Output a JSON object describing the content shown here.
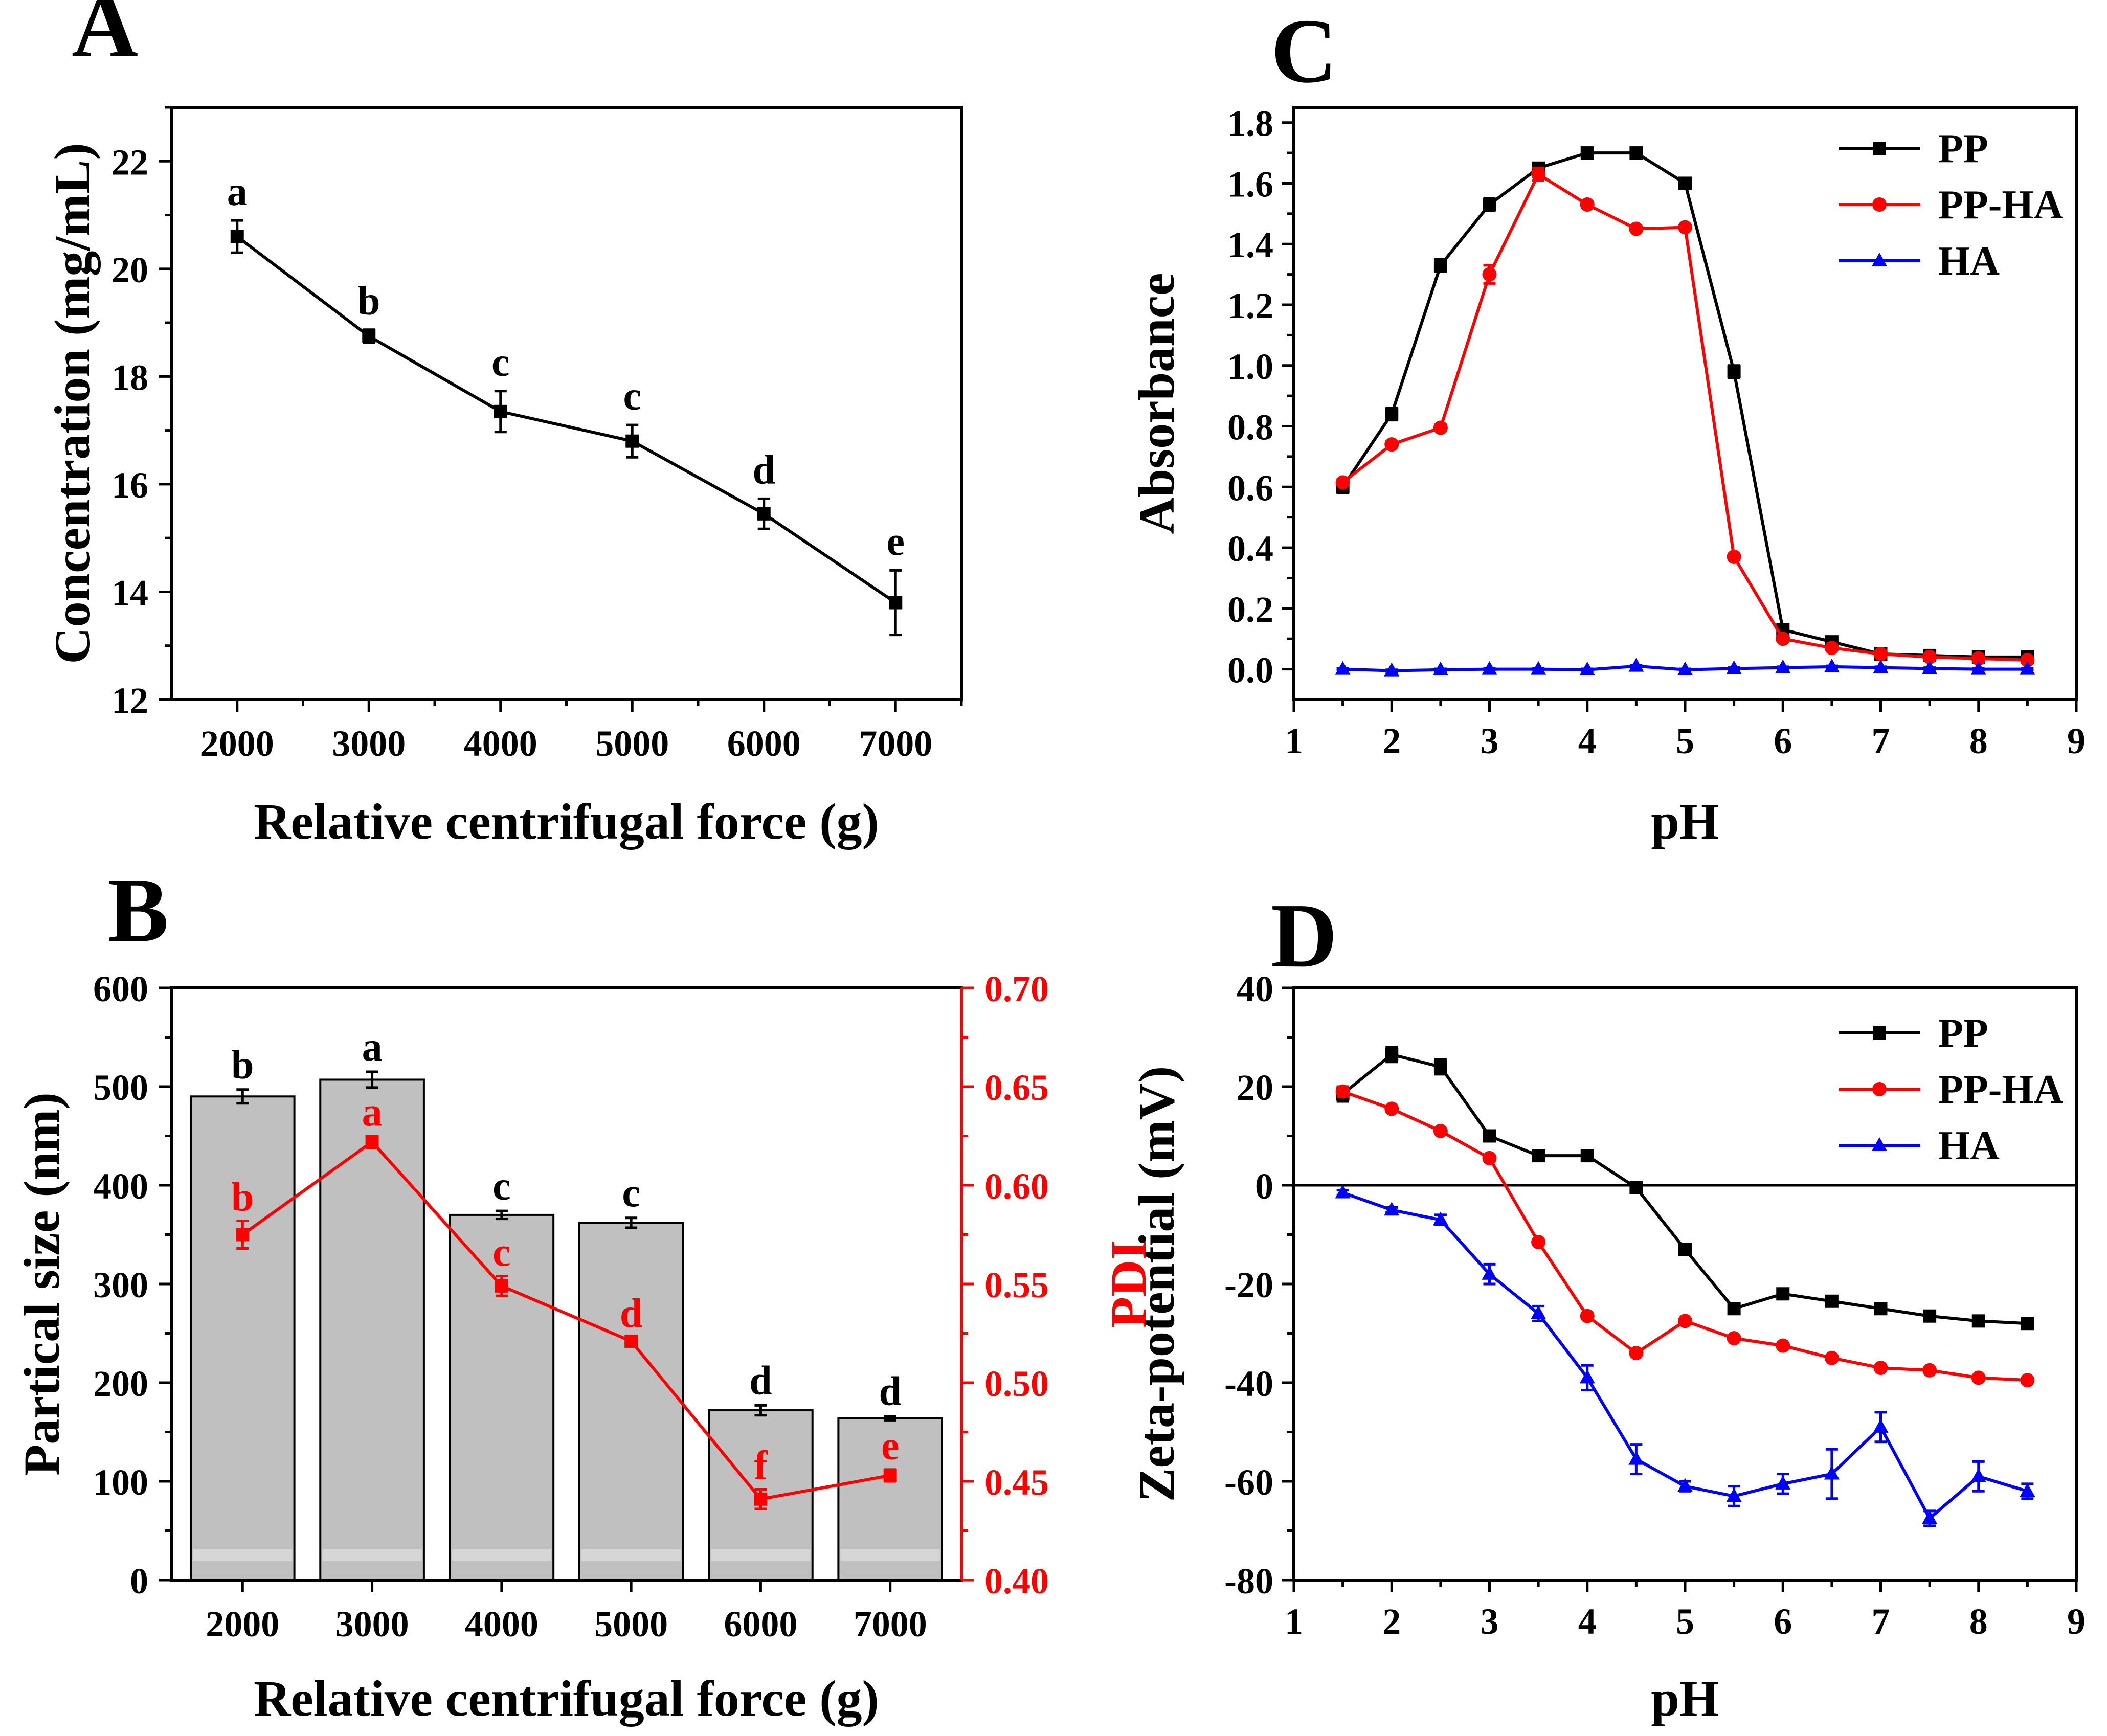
{
  "colors": {
    "black": "#000000",
    "red": "#ff0000",
    "blue": "#0000ff",
    "bar_fill": "#c0c0c0"
  },
  "chart_data": [
    {
      "panel": "A",
      "type": "line",
      "xlabel": "Relative centrifugal force (g)",
      "ylabel": "Concentration (mg/mL)",
      "x": [
        2000,
        3000,
        4000,
        5000,
        6000,
        7000
      ],
      "x_ticks": [
        "2000",
        "3000",
        "4000",
        "5000",
        "6000",
        "7000"
      ],
      "xlim": [
        1500,
        7500
      ],
      "ylim": [
        12,
        23
      ],
      "y_ticks": [
        "12",
        "14",
        "16",
        "18",
        "20",
        "22"
      ],
      "series": [
        {
          "name": "Concentration",
          "color": "black",
          "marker": "square",
          "values": [
            20.6,
            18.75,
            17.35,
            16.8,
            15.45,
            13.8
          ],
          "errors": [
            0.3,
            0.12,
            0.38,
            0.3,
            0.28,
            0.6
          ],
          "letters": [
            "a",
            "b",
            "c",
            "c",
            "d",
            "e"
          ]
        }
      ]
    },
    {
      "panel": "B",
      "type": "bar",
      "xlabel": "Relative centrifugal force (g)",
      "ylabel": "Partical size (nm)",
      "ylabel_right": "PDI",
      "categories": [
        "2000",
        "3000",
        "4000",
        "5000",
        "6000",
        "7000"
      ],
      "ylim": [
        0,
        600
      ],
      "y_ticks": [
        "0",
        "100",
        "200",
        "300",
        "400",
        "500",
        "600"
      ],
      "ylim_right": [
        0.4,
        0.7
      ],
      "y_ticks_right": [
        "0.40",
        "0.45",
        "0.50",
        "0.55",
        "0.60",
        "0.65",
        "0.70"
      ],
      "series": [
        {
          "name": "Partical size",
          "kind": "bar",
          "color": "black",
          "values": [
            490,
            507,
            370,
            362,
            172,
            164
          ],
          "errors": [
            7,
            8,
            4,
            5,
            5,
            2
          ],
          "letters": [
            "b",
            "a",
            "c",
            "c",
            "d",
            "d"
          ]
        },
        {
          "name": "PDI",
          "kind": "line",
          "color": "red",
          "axis": "right",
          "values": [
            0.575,
            0.622,
            0.549,
            0.521,
            0.441,
            0.453
          ],
          "errors": [
            0.007,
            0.003,
            0.005,
            0.002,
            0.005,
            0.003
          ],
          "letters": [
            "b",
            "a",
            "c",
            "d",
            "f",
            "e"
          ]
        }
      ]
    },
    {
      "panel": "C",
      "type": "line",
      "xlabel": "pH",
      "ylabel": "Absorbance",
      "x": [
        1.5,
        2,
        2.5,
        3,
        3.5,
        4,
        4.5,
        5,
        5.5,
        6,
        6.5,
        7,
        7.5,
        8,
        8.5
      ],
      "xlim": [
        1,
        9
      ],
      "x_ticks": [
        "1",
        "2",
        "3",
        "4",
        "5",
        "6",
        "7",
        "8",
        "9"
      ],
      "ylim": [
        -0.1,
        1.85
      ],
      "y_ticks": [
        "0.0",
        "0.2",
        "0.4",
        "0.6",
        "0.8",
        "1.0",
        "1.2",
        "1.4",
        "1.6",
        "1.8"
      ],
      "legend_position": "top-right",
      "series": [
        {
          "name": "PP",
          "color": "black",
          "marker": "square",
          "values": [
            0.6,
            0.84,
            1.33,
            1.53,
            1.65,
            1.7,
            1.7,
            1.6,
            0.98,
            0.13,
            0.09,
            0.05,
            0.045,
            0.04,
            0.04
          ],
          "errors": [
            0.02,
            0.02,
            0.02,
            0.02,
            0.01,
            0.01,
            0.01,
            0.01,
            0.02,
            0.01,
            0.01,
            0.005,
            0.005,
            0.005,
            0.005
          ]
        },
        {
          "name": "PP-HA",
          "color": "red",
          "marker": "circle",
          "values": [
            0.615,
            0.74,
            0.795,
            1.3,
            1.63,
            1.53,
            1.45,
            1.455,
            0.37,
            0.1,
            0.07,
            0.05,
            0.04,
            0.035,
            0.03
          ],
          "errors": [
            0.01,
            0.01,
            0.01,
            0.03,
            0.02,
            0.01,
            0.01,
            0.01,
            0.01,
            0.005,
            0.005,
            0.005,
            0.005,
            0.005,
            0.005
          ]
        },
        {
          "name": "HA",
          "color": "blue",
          "marker": "triangle",
          "values": [
            0.0,
            -0.005,
            -0.002,
            0.0,
            0.0,
            -0.002,
            0.01,
            -0.002,
            0.002,
            0.005,
            0.008,
            0.005,
            0.002,
            0.0,
            0.0
          ],
          "errors": [
            0.003,
            0.003,
            0.003,
            0.003,
            0.003,
            0.003,
            0.003,
            0.003,
            0.003,
            0.003,
            0.003,
            0.003,
            0.003,
            0.003,
            0.003
          ]
        }
      ]
    },
    {
      "panel": "D",
      "type": "line",
      "xlabel": "pH",
      "ylabel": "Zeta-potential (mV)",
      "x": [
        1.5,
        2,
        2.5,
        3,
        3.5,
        4,
        4.5,
        5,
        5.5,
        6,
        6.5,
        7,
        7.5,
        8,
        8.5
      ],
      "xlim": [
        1,
        9
      ],
      "x_ticks": [
        "1",
        "2",
        "3",
        "4",
        "5",
        "6",
        "7",
        "8",
        "9"
      ],
      "ylim": [
        -80,
        40
      ],
      "y_ticks": [
        "-80",
        "-60",
        "-40",
        "-20",
        "0",
        "20",
        "40"
      ],
      "zero_line": true,
      "legend_position": "top-right",
      "series": [
        {
          "name": "PP",
          "color": "black",
          "marker": "square",
          "values": [
            18.5,
            26.5,
            24,
            10,
            6,
            6,
            -0.5,
            -13,
            -25,
            -22,
            -23.5,
            -25,
            -26.5,
            -27.5,
            -28
          ],
          "errors": [
            1.5,
            1.5,
            1.5,
            1,
            0.5,
            0.5,
            0.5,
            0.5,
            0.5,
            0.5,
            0.5,
            0.5,
            0.5,
            0.5,
            0.5
          ]
        },
        {
          "name": "PP-HA",
          "color": "red",
          "marker": "circle",
          "values": [
            19,
            15.5,
            11,
            5.5,
            -11.5,
            -26.5,
            -34,
            -27.5,
            -31,
            -32.5,
            -35,
            -37,
            -37.5,
            -39,
            -39.5
          ],
          "errors": [
            1,
            0.5,
            0.5,
            0.5,
            0.5,
            0.5,
            0.5,
            0.5,
            0.5,
            0.5,
            0.5,
            0.5,
            0.5,
            0.5,
            0.5
          ]
        },
        {
          "name": "HA",
          "color": "blue",
          "marker": "triangle",
          "values": [
            -1.5,
            -5,
            -7,
            -18,
            -26,
            -39,
            -55.5,
            -61,
            -63,
            -60.5,
            -58.5,
            -49,
            -67.5,
            -59,
            -62
          ],
          "errors": [
            0.5,
            0.5,
            1,
            2,
            1.5,
            2.5,
            3,
            1,
            2,
            2,
            5,
            3,
            1.5,
            3,
            1.5
          ]
        }
      ]
    }
  ]
}
